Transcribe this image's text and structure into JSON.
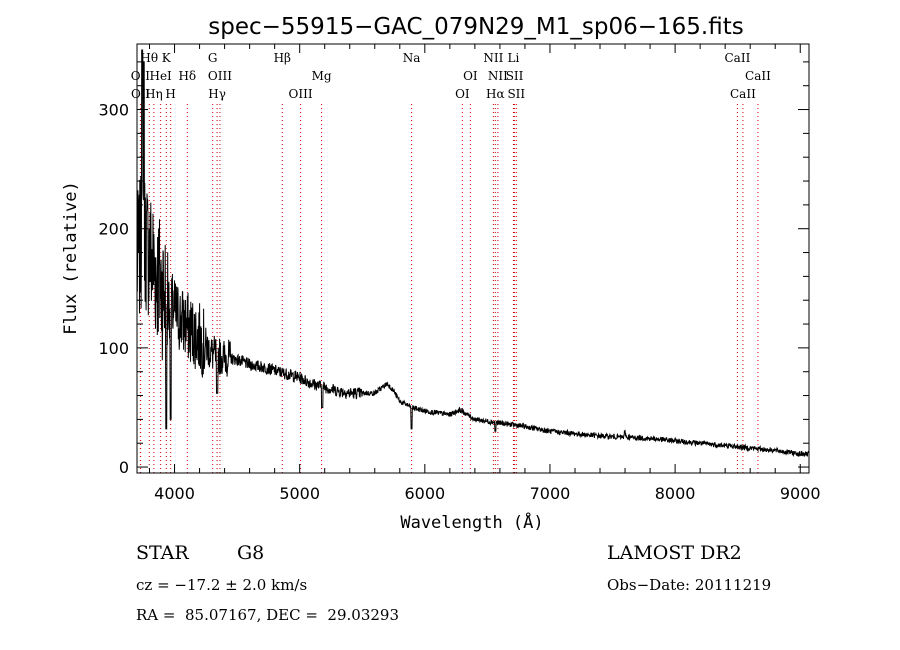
{
  "chart_data": {
    "type": "line",
    "title": "spec−55915−GAC_079N29_M1_sp06−165.fits",
    "xlabel": "Wavelength (Å)",
    "ylabel": "Flux (relative)",
    "xlim": [
      3700,
      9070
    ],
    "ylim": [
      -5,
      355
    ],
    "x_ticks": [
      4000,
      5000,
      6000,
      7000,
      8000,
      9000
    ],
    "y_ticks": [
      0,
      100,
      200,
      300
    ],
    "grid": false,
    "line_color": "#000000",
    "line_marker_color": "#cc0000",
    "spectrum_anchors": {
      "x": [
        3700,
        3750,
        3800,
        3850,
        3900,
        3950,
        4000,
        4100,
        4200,
        4300,
        4400,
        4500,
        4600,
        4700,
        4800,
        4900,
        5000,
        5100,
        5200,
        5300,
        5400,
        5500,
        5600,
        5700,
        5750,
        5800,
        5900,
        6000,
        6200,
        6280,
        6400,
        6600,
        6800,
        7000,
        7200,
        7400,
        7600,
        7800,
        8000,
        8200,
        8400,
        8600,
        8800,
        9000,
        9070
      ],
      "y": [
        170,
        195,
        180,
        165,
        150,
        140,
        130,
        118,
        108,
        95,
        92,
        90,
        86,
        84,
        81,
        78,
        75,
        70,
        67,
        64,
        62,
        62,
        62,
        70,
        64,
        55,
        50,
        47,
        44,
        48,
        40,
        37,
        34,
        30,
        28,
        26,
        25,
        24,
        22,
        20,
        18,
        16,
        14,
        11,
        11
      ]
    },
    "lines": [
      {
        "label": "OII",
        "x": 3727,
        "row": 2
      },
      {
        "label": "OII",
        "x": 3729,
        "row": 3
      },
      {
        "label": "Hθ",
        "x": 3798,
        "row": 1
      },
      {
        "label": "Hη",
        "x": 3835,
        "row": 3
      },
      {
        "label": "HeI",
        "x": 3889,
        "row": 2
      },
      {
        "label": "K",
        "x": 3934,
        "row": 1
      },
      {
        "label": "H",
        "x": 3969,
        "row": 3
      },
      {
        "label": "Hδ",
        "x": 4102,
        "row": 2
      },
      {
        "label": "G",
        "x": 4305,
        "row": 1
      },
      {
        "label": "OIII",
        "x": 4363,
        "row": 2
      },
      {
        "label": "Hγ",
        "x": 4340,
        "row": 3
      },
      {
        "label": "Hβ",
        "x": 4861,
        "row": 1
      },
      {
        "label": "OIII",
        "x": 5007,
        "row": 3
      },
      {
        "label": "Mg",
        "x": 5175,
        "row": 2
      },
      {
        "label": "Na",
        "x": 5894,
        "row": 1
      },
      {
        "label": "OI",
        "x": 6300,
        "row": 3
      },
      {
        "label": "OI",
        "x": 6364,
        "row": 2
      },
      {
        "label": "NII",
        "x": 6548,
        "row": 1
      },
      {
        "label": "NII",
        "x": 6584,
        "row": 2
      },
      {
        "label": "Hα",
        "x": 6563,
        "row": 3
      },
      {
        "label": "Li",
        "x": 6708,
        "row": 1
      },
      {
        "label": "SII",
        "x": 6717,
        "row": 2
      },
      {
        "label": "SII",
        "x": 6731,
        "row": 3
      },
      {
        "label": "CaII",
        "x": 8498,
        "row": 1
      },
      {
        "label": "CaII",
        "x": 8542,
        "row": 3
      },
      {
        "label": "CaII",
        "x": 8662,
        "row": 2
      }
    ]
  },
  "info": {
    "object_type": "STAR",
    "subclass": "G8",
    "survey": "LAMOST DR2",
    "redshift": "cz = −17.2 ± 2.0 km/s",
    "obs_date": "Obs−Date: 20111219",
    "coords": "RA =  85.07167, DEC =  29.03293"
  }
}
